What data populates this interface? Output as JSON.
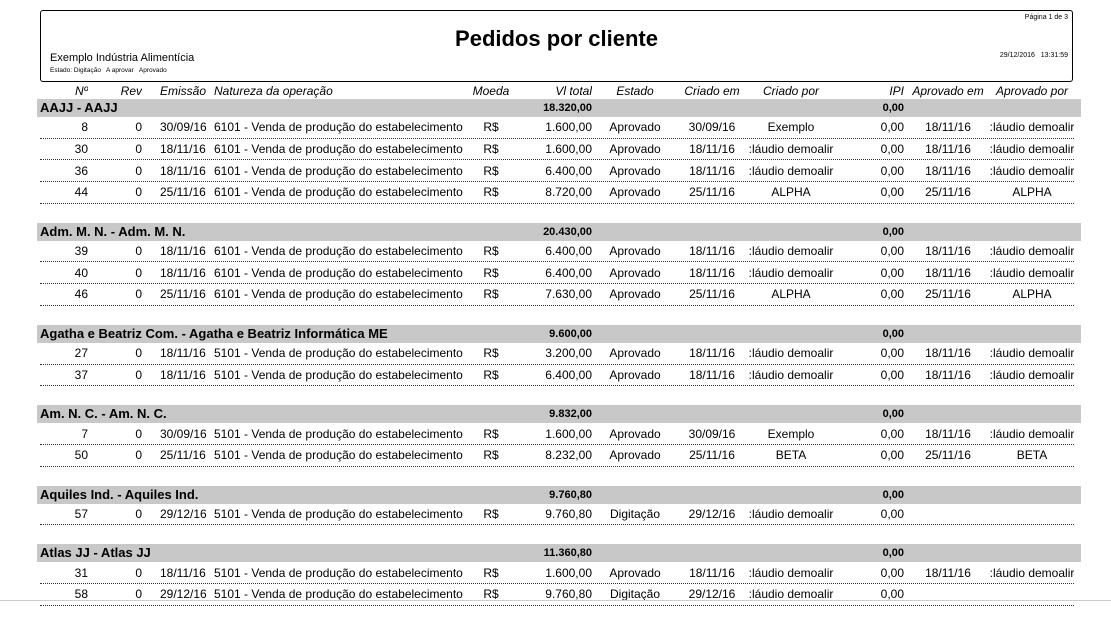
{
  "header": {
    "title": "Pedidos por cliente",
    "page": "Página 1 de 3",
    "company": "Exemplo Indústria Alimentícia",
    "filter": "Estado: Digitação   A aprovar   Aprovado",
    "datetime": "29/12/2016   13:31:59"
  },
  "columns": [
    "Nº",
    "Rev",
    "Emissão",
    "Natureza da operação",
    "Moeda",
    "Vl total",
    "Estado",
    "Criado em",
    "Criado por",
    "IPI",
    "Aprovado em",
    "Aprovado por"
  ],
  "groups": [
    {
      "name": "AAJJ - AAJJ",
      "total": "18.320,00",
      "ipi": "0,00",
      "rows": [
        [
          "8",
          "0",
          "30/09/16",
          "6101 - Venda de produção do estabelecimento",
          "R$",
          "1.600,00",
          "Aprovado",
          "30/09/16",
          "Exemplo",
          "0,00",
          "18/11/16",
          ":láudio demoalir"
        ],
        [
          "30",
          "0",
          "18/11/16",
          "6101 - Venda de produção do estabelecimento",
          "R$",
          "1.600,00",
          "Aprovado",
          "18/11/16",
          ":láudio demoalir",
          "0,00",
          "18/11/16",
          ":láudio demoalir"
        ],
        [
          "36",
          "0",
          "18/11/16",
          "6101 - Venda de produção do estabelecimento",
          "R$",
          "6.400,00",
          "Aprovado",
          "18/11/16",
          ":láudio demoalir",
          "0,00",
          "18/11/16",
          ":láudio demoalir"
        ],
        [
          "44",
          "0",
          "25/11/16",
          "6101 - Venda de produção do estabelecimento",
          "R$",
          "8.720,00",
          "Aprovado",
          "25/11/16",
          "ALPHA",
          "0,00",
          "25/11/16",
          "ALPHA"
        ]
      ]
    },
    {
      "name": "Adm. M. N. - Adm. M. N.",
      "total": "20.430,00",
      "ipi": "0,00",
      "rows": [
        [
          "39",
          "0",
          "18/11/16",
          "6101 - Venda de produção do estabelecimento",
          "R$",
          "6.400,00",
          "Aprovado",
          "18/11/16",
          ":láudio demoalir",
          "0,00",
          "18/11/16",
          ":láudio demoalir"
        ],
        [
          "40",
          "0",
          "18/11/16",
          "6101 - Venda de produção do estabelecimento",
          "R$",
          "6.400,00",
          "Aprovado",
          "18/11/16",
          ":láudio demoalir",
          "0,00",
          "18/11/16",
          ":láudio demoalir"
        ],
        [
          "46",
          "0",
          "25/11/16",
          "6101 - Venda de produção do estabelecimento",
          "R$",
          "7.630,00",
          "Aprovado",
          "25/11/16",
          "ALPHA",
          "0,00",
          "25/11/16",
          "ALPHA"
        ]
      ]
    },
    {
      "name": "Agatha e Beatriz Com. - Agatha e Beatriz Informática ME",
      "total": "9.600,00",
      "ipi": "0,00",
      "rows": [
        [
          "27",
          "0",
          "18/11/16",
          "5101 - Venda de produção do estabelecimento",
          "R$",
          "3.200,00",
          "Aprovado",
          "18/11/16",
          ":láudio demoalir",
          "0,00",
          "18/11/16",
          ":láudio demoalir"
        ],
        [
          "37",
          "0",
          "18/11/16",
          "5101 - Venda de produção do estabelecimento",
          "R$",
          "6.400,00",
          "Aprovado",
          "18/11/16",
          ":láudio demoalir",
          "0,00",
          "18/11/16",
          ":láudio demoalir"
        ]
      ]
    },
    {
      "name": "Am. N. C. - Am. N. C.",
      "total": "9.832,00",
      "ipi": "0,00",
      "rows": [
        [
          "7",
          "0",
          "30/09/16",
          "5101 - Venda de produção do estabelecimento",
          "R$",
          "1.600,00",
          "Aprovado",
          "30/09/16",
          "Exemplo",
          "0,00",
          "18/11/16",
          ":láudio demoalir"
        ],
        [
          "50",
          "0",
          "25/11/16",
          "5101 - Venda de produção do estabelecimento",
          "R$",
          "8.232,00",
          "Aprovado",
          "25/11/16",
          "BETA",
          "0,00",
          "25/11/16",
          "BETA"
        ]
      ]
    },
    {
      "name": "Aquiles Ind. - Aquiles Ind.",
      "total": "9.760,80",
      "ipi": "0,00",
      "rows": [
        [
          "57",
          "0",
          "29/12/16",
          "5101 - Venda de produção do estabelecimento",
          "R$",
          "9.760,80",
          "Digitação",
          "29/12/16",
          ":láudio demoalir",
          "0,00",
          "",
          ""
        ]
      ]
    },
    {
      "name": "Atlas JJ - Atlas JJ",
      "total": "11.360,80",
      "ipi": "0,00",
      "rows": [
        [
          "31",
          "0",
          "18/11/16",
          "5101 - Venda de produção do estabelecimento",
          "R$",
          "1.600,00",
          "Aprovado",
          "18/11/16",
          ":láudio demoalir",
          "0,00",
          "18/11/16",
          ":láudio demoalir"
        ],
        [
          "58",
          "0",
          "29/12/16",
          "5101 - Venda de produção do estabelecimento",
          "R$",
          "9.760,80",
          "Digitação",
          "29/12/16",
          ":láudio demoalir",
          "0,00",
          "",
          ""
        ]
      ]
    }
  ]
}
